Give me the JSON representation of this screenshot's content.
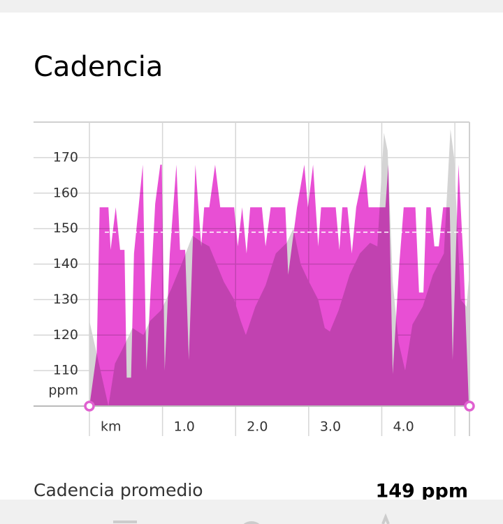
{
  "chart_data": {
    "type": "area",
    "title": "Cadencia",
    "x_unit_label": "km",
    "y_unit": "ppm",
    "xlim": [
      0,
      5.2
    ],
    "ylim": [
      100,
      180
    ],
    "xticks": [
      {
        "value": 0,
        "label": "km"
      },
      {
        "value": 1,
        "label": "1.0"
      },
      {
        "value": 2,
        "label": "2.0"
      },
      {
        "value": 3,
        "label": "3.0"
      },
      {
        "value": 4,
        "label": "4.0"
      },
      {
        "value": 5,
        "label": null
      }
    ],
    "yticks": [
      110,
      120,
      130,
      140,
      150,
      160,
      170
    ],
    "grid": true,
    "series": [
      {
        "color": "#d4d4d4",
        "x": [
          0.0,
          0.26,
          0.35,
          0.45,
          0.59,
          0.74,
          0.83,
          0.98,
          1.12,
          1.26,
          1.41,
          1.55,
          1.64,
          1.84,
          1.98,
          2.07,
          2.14,
          2.27,
          2.41,
          2.55,
          2.7,
          2.79,
          2.89,
          2.98,
          3.13,
          3.22,
          3.29,
          3.41,
          3.56,
          3.7,
          3.84,
          3.94,
          4.03,
          4.08,
          4.15,
          4.23,
          4.32,
          4.42,
          4.56,
          4.7,
          4.85,
          4.94,
          4.99,
          5.08,
          5.16,
          5.2
        ],
        "values": [
          124,
          100,
          112,
          116,
          122,
          120,
          124,
          127,
          133,
          140,
          148,
          146,
          145,
          135,
          130,
          124,
          120,
          128,
          134,
          143,
          146,
          150,
          140,
          136,
          130,
          122,
          121,
          127,
          137,
          143,
          146,
          145,
          177,
          172,
          135,
          118,
          110,
          123,
          128,
          137,
          143,
          178,
          170,
          130,
          128,
          138
        ]
      },
      {
        "color": "#e84fd4",
        "x": [
          0.0,
          0.1,
          0.14,
          0.26,
          0.29,
          0.36,
          0.42,
          0.48,
          0.51,
          0.57,
          0.61,
          0.73,
          0.78,
          0.9,
          0.97,
          0.99,
          1.03,
          1.1,
          1.19,
          1.24,
          1.31,
          1.36,
          1.45,
          1.53,
          1.57,
          1.64,
          1.72,
          1.79,
          1.98,
          2.03,
          2.09,
          2.15,
          2.2,
          2.36,
          2.41,
          2.48,
          2.68,
          2.72,
          2.77,
          2.84,
          2.94,
          2.99,
          3.06,
          3.13,
          3.17,
          3.37,
          3.42,
          3.46,
          3.53,
          3.59,
          3.65,
          3.77,
          3.82,
          4.05,
          4.09,
          4.15,
          4.24,
          4.3,
          4.46,
          4.51,
          4.57,
          4.61,
          4.67,
          4.72,
          4.78,
          4.84,
          4.93,
          4.97,
          5.05,
          5.12,
          5.19
        ],
        "values": [
          100,
          115,
          156,
          156,
          144,
          156,
          144,
          144,
          108,
          108,
          143,
          168,
          110,
          157,
          168,
          168,
          110,
          143,
          168,
          144,
          144,
          113,
          168,
          145,
          156,
          156,
          168,
          156,
          156,
          145,
          156,
          143,
          156,
          156,
          145,
          156,
          156,
          137,
          145,
          156,
          168,
          156,
          168,
          145,
          156,
          156,
          144,
          156,
          156,
          143,
          156,
          168,
          156,
          156,
          168,
          109,
          140,
          156,
          156,
          132,
          132,
          156,
          156,
          145,
          145,
          156,
          156,
          113,
          168,
          140,
          101
        ]
      }
    ],
    "average": {
      "name": "Cadencia promedio",
      "value": 149,
      "label": "149 ppm"
    }
  }
}
